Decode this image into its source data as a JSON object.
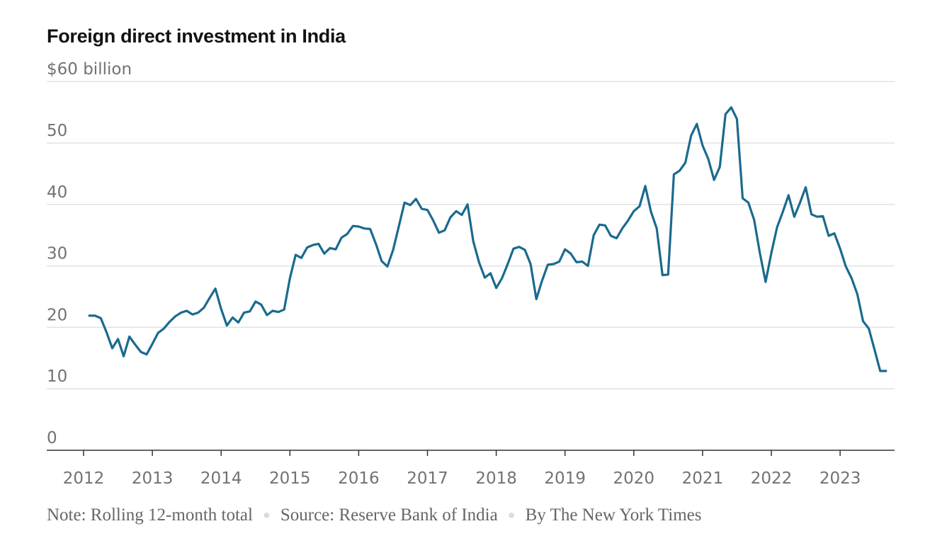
{
  "chart_data": {
    "type": "line",
    "title": "Foreign direct investment in India",
    "ylabel": "",
    "xlabel": "",
    "y_unit_label": "$60 billion",
    "ylim": [
      0,
      60
    ],
    "yticks": [
      0,
      10,
      20,
      30,
      40,
      50,
      60
    ],
    "ytick_labels": [
      "0",
      "10",
      "20",
      "30",
      "40",
      "50",
      "$60 billion"
    ],
    "xticks": [
      "2012",
      "2013",
      "2014",
      "2015",
      "2016",
      "2017",
      "2018",
      "2019",
      "2020",
      "2021",
      "2022",
      "2023"
    ],
    "grid": true,
    "line_color": "#1b6a8e",
    "series": [
      {
        "x": [
          "2012-02",
          "2012-03",
          "2012-04",
          "2012-05",
          "2012-06",
          "2012-07",
          "2012-08",
          "2012-09",
          "2012-10",
          "2012-11",
          "2012-12",
          "2013-01",
          "2013-02",
          "2013-03",
          "2013-04",
          "2013-05",
          "2013-06",
          "2013-07",
          "2013-08",
          "2013-09",
          "2013-10",
          "2013-11",
          "2013-12",
          "2014-01",
          "2014-02",
          "2014-03",
          "2014-04",
          "2014-05",
          "2014-06",
          "2014-07",
          "2014-08",
          "2014-09",
          "2014-10",
          "2014-11",
          "2014-12",
          "2015-01",
          "2015-02",
          "2015-03",
          "2015-04",
          "2015-05",
          "2015-06",
          "2015-07",
          "2015-08",
          "2015-09",
          "2015-10",
          "2015-11",
          "2015-12",
          "2016-01",
          "2016-02",
          "2016-03",
          "2016-04",
          "2016-05",
          "2016-06",
          "2016-07",
          "2016-08",
          "2016-09",
          "2016-10",
          "2016-11",
          "2016-12",
          "2017-01",
          "2017-02",
          "2017-03",
          "2017-04",
          "2017-05",
          "2017-06",
          "2017-07",
          "2017-08",
          "2017-09",
          "2017-10",
          "2017-11",
          "2017-12",
          "2018-01",
          "2018-02",
          "2018-03",
          "2018-04",
          "2018-05",
          "2018-06",
          "2018-07",
          "2018-08",
          "2018-09",
          "2018-10",
          "2018-11",
          "2018-12",
          "2019-01",
          "2019-02",
          "2019-03",
          "2019-04",
          "2019-05",
          "2019-06",
          "2019-07",
          "2019-08",
          "2019-09",
          "2019-10",
          "2019-11",
          "2019-12",
          "2020-01",
          "2020-02",
          "2020-03",
          "2020-04",
          "2020-05",
          "2020-06",
          "2020-07",
          "2020-08",
          "2020-09",
          "2020-10",
          "2020-11",
          "2020-12",
          "2021-01",
          "2021-02",
          "2021-03",
          "2021-04",
          "2021-05",
          "2021-06",
          "2021-07",
          "2021-08",
          "2021-09",
          "2021-10",
          "2021-11",
          "2021-12",
          "2022-01",
          "2022-02",
          "2022-03",
          "2022-04",
          "2022-05",
          "2022-06",
          "2022-07",
          "2022-08",
          "2022-09",
          "2022-10",
          "2022-11",
          "2022-12",
          "2023-01",
          "2023-02",
          "2023-03",
          "2023-04",
          "2023-05",
          "2023-06",
          "2023-07",
          "2023-08",
          "2023-09"
        ],
        "values": [
          21.9,
          21.9,
          21.5,
          19.2,
          16.6,
          18.1,
          15.3,
          18.5,
          17.2,
          16.0,
          15.6,
          17.3,
          19.1,
          19.8,
          20.9,
          21.8,
          22.4,
          22.7,
          22.1,
          22.4,
          23.2,
          24.8,
          26.3,
          23.0,
          20.3,
          21.6,
          20.8,
          22.4,
          22.6,
          24.2,
          23.7,
          22.0,
          22.7,
          22.5,
          22.9,
          28.0,
          31.8,
          31.3,
          33.0,
          33.4,
          33.6,
          32.0,
          32.9,
          32.7,
          34.6,
          35.2,
          36.5,
          36.4,
          36.1,
          36.0,
          33.6,
          30.8,
          29.9,
          32.6,
          36.4,
          40.3,
          39.9,
          40.9,
          39.3,
          39.1,
          37.4,
          35.4,
          35.8,
          37.9,
          38.9,
          38.3,
          40.0,
          34.0,
          30.6,
          28.1,
          28.8,
          26.4,
          28.0,
          30.3,
          32.8,
          33.1,
          32.6,
          30.3,
          24.6,
          27.6,
          30.2,
          30.3,
          30.7,
          32.7,
          32.0,
          30.6,
          30.7,
          30.0,
          35.0,
          36.7,
          36.6,
          34.9,
          34.5,
          36.1,
          37.4,
          38.9,
          39.7,
          43.0,
          38.8,
          36.1,
          28.5,
          28.6,
          44.9,
          45.5,
          46.8,
          51.2,
          53.1,
          49.6,
          47.4,
          44.0,
          46.1,
          54.7,
          55.8,
          53.9,
          41.0,
          40.3,
          37.5,
          32.1,
          27.4,
          32.1,
          36.3,
          38.8,
          41.5,
          38.0,
          40.3,
          42.8,
          38.4,
          38.0,
          38.1,
          34.9,
          35.3,
          32.8,
          29.9,
          28.0,
          25.4,
          21.0,
          19.8,
          16.4,
          12.9,
          12.9
        ]
      }
    ]
  },
  "footer": {
    "note": "Note:  Rolling 12-month total",
    "source": "Source:  Reserve Bank of India",
    "byline": "By The New York Times"
  }
}
